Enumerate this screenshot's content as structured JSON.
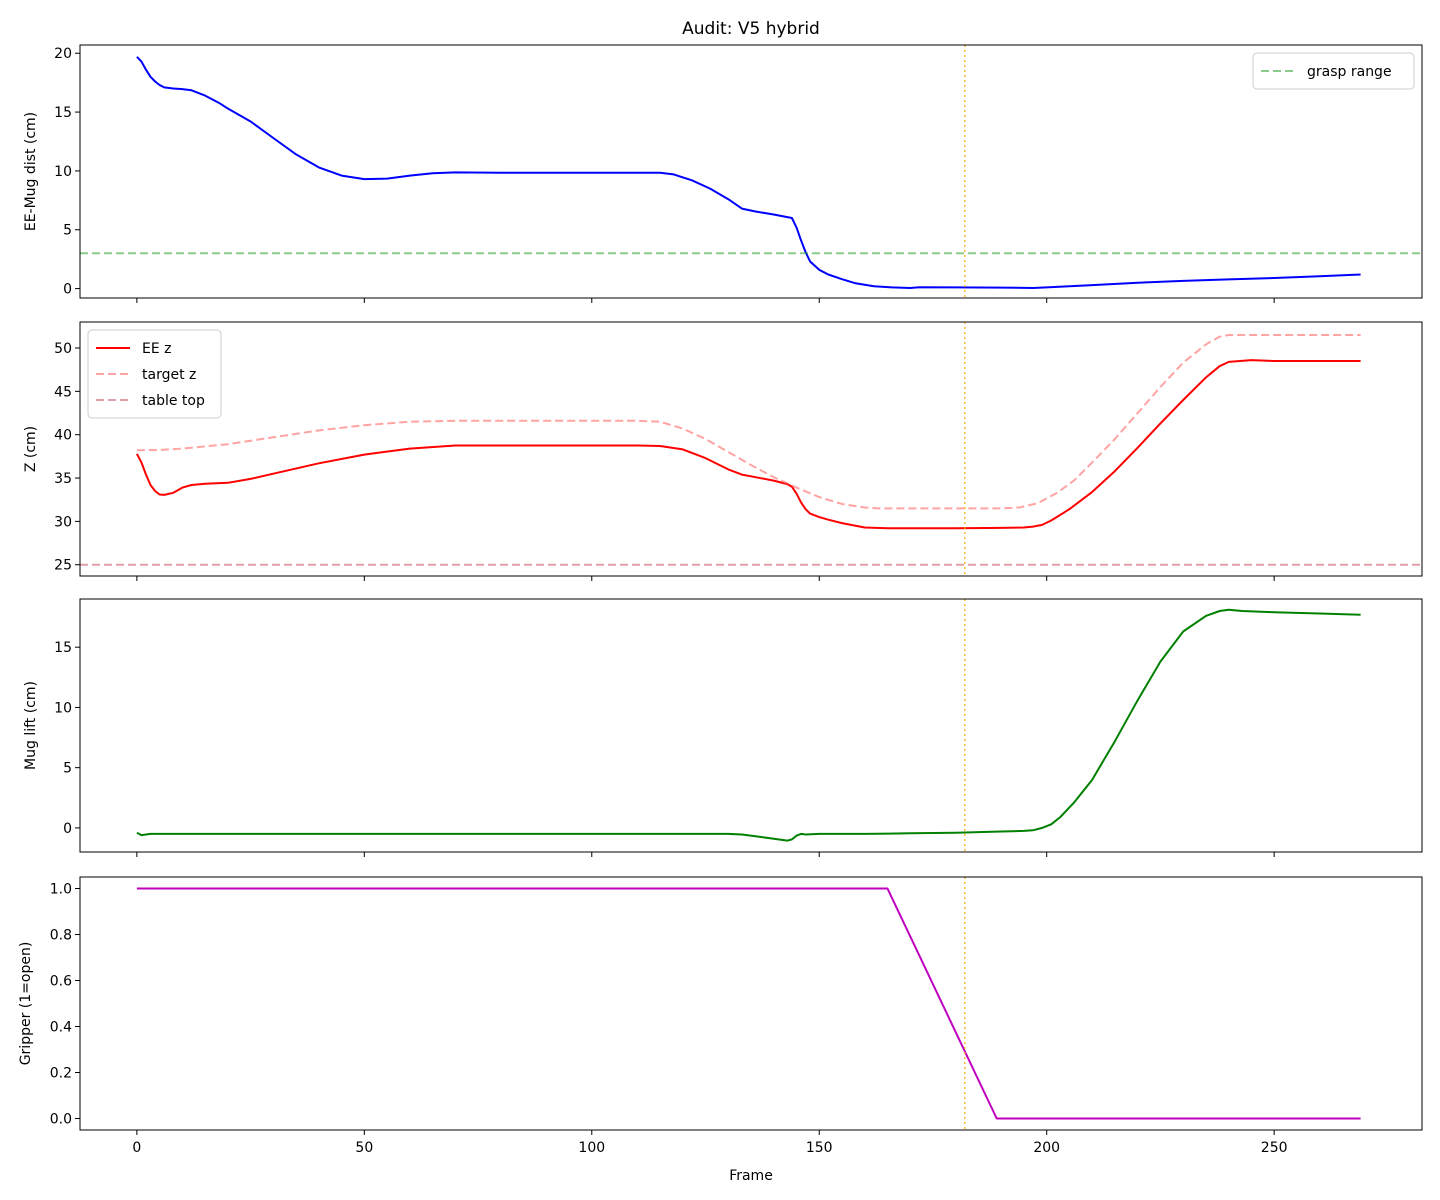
{
  "figure": {
    "title": "Audit: V5 hybrid",
    "xlabel": "Frame",
    "marker_frame": 182,
    "marker_color": "#ffa500"
  },
  "chart_data": [
    {
      "type": "line",
      "panel": 1,
      "title": "Audit: V5 hybrid",
      "xlabel": "",
      "ylabel": "EE-Mug dist (cm)",
      "xlim": [
        -12.5,
        282.5
      ],
      "ylim": [
        -0.8,
        20.7
      ],
      "xticks": [
        0,
        50,
        100,
        150,
        200,
        250
      ],
      "yticks": [
        0,
        5,
        10,
        15,
        20
      ],
      "grid": false,
      "legend_position": "upper right",
      "series": [
        {
          "name": "EE-Mug dist",
          "color": "#0000ff",
          "style": "solid",
          "x": [
            0,
            1,
            2,
            3,
            4,
            5,
            6,
            8,
            10,
            12,
            15,
            18,
            20,
            25,
            30,
            35,
            40,
            45,
            50,
            55,
            60,
            65,
            70,
            80,
            90,
            100,
            110,
            115,
            118,
            122,
            126,
            130,
            133,
            136,
            140,
            144,
            145,
            146,
            147,
            148,
            150,
            152,
            155,
            158,
            162,
            166,
            170,
            172,
            180,
            190,
            197,
            200,
            210,
            220,
            230,
            240,
            250,
            260,
            269
          ],
          "values": [
            19.7,
            19.3,
            18.6,
            18.0,
            17.6,
            17.3,
            17.1,
            17.0,
            16.95,
            16.85,
            16.4,
            15.8,
            15.3,
            14.2,
            12.8,
            11.4,
            10.3,
            9.6,
            9.3,
            9.35,
            9.6,
            9.8,
            9.87,
            9.85,
            9.85,
            9.85,
            9.85,
            9.85,
            9.7,
            9.2,
            8.5,
            7.6,
            6.8,
            6.55,
            6.3,
            6.0,
            5.2,
            4.1,
            3.1,
            2.3,
            1.6,
            1.2,
            0.8,
            0.45,
            0.2,
            0.1,
            0.05,
            0.12,
            0.1,
            0.08,
            0.05,
            0.1,
            0.3,
            0.5,
            0.65,
            0.78,
            0.9,
            1.05,
            1.2
          ]
        },
        {
          "name": "grasp range",
          "color": "#2ca02c",
          "style": "dashed",
          "alpha": 0.55,
          "y_const": 3.0
        }
      ]
    },
    {
      "type": "line",
      "panel": 2,
      "xlabel": "",
      "ylabel": "Z (cm)",
      "xlim": [
        -12.5,
        282.5
      ],
      "ylim": [
        23.7,
        53.0
      ],
      "xticks": [
        0,
        50,
        100,
        150,
        200,
        250
      ],
      "yticks": [
        25,
        30,
        35,
        40,
        45,
        50
      ],
      "grid": false,
      "legend_position": "upper left",
      "series": [
        {
          "name": "EE z",
          "color": "#ff0000",
          "style": "solid",
          "x": [
            0,
            1,
            2,
            3,
            4,
            5,
            6,
            8,
            10,
            12,
            15,
            20,
            25,
            30,
            40,
            50,
            60,
            70,
            80,
            90,
            100,
            110,
            115,
            120,
            125,
            130,
            133,
            136,
            140,
            143,
            144,
            145,
            146,
            147,
            148,
            150,
            152,
            155,
            160,
            165,
            170,
            180,
            190,
            195,
            197,
            199,
            201,
            205,
            210,
            215,
            220,
            225,
            230,
            235,
            238,
            240,
            245,
            250,
            260,
            269
          ],
          "values": [
            37.8,
            36.8,
            35.4,
            34.2,
            33.5,
            33.1,
            33.05,
            33.3,
            33.9,
            34.2,
            34.35,
            34.45,
            34.9,
            35.5,
            36.7,
            37.7,
            38.4,
            38.75,
            38.75,
            38.75,
            38.75,
            38.75,
            38.7,
            38.3,
            37.3,
            36.0,
            35.4,
            35.1,
            34.7,
            34.3,
            34.0,
            33.2,
            32.2,
            31.4,
            30.9,
            30.5,
            30.2,
            29.8,
            29.3,
            29.2,
            29.2,
            29.2,
            29.25,
            29.3,
            29.4,
            29.6,
            30.1,
            31.4,
            33.4,
            35.8,
            38.5,
            41.3,
            44.0,
            46.6,
            47.9,
            48.4,
            48.6,
            48.5,
            48.5,
            48.5
          ]
        },
        {
          "name": "target z",
          "color": "#ff6666",
          "style": "dashed",
          "alpha": 0.6,
          "x": [
            0,
            5,
            10,
            20,
            30,
            40,
            50,
            60,
            70,
            80,
            90,
            100,
            110,
            115,
            120,
            125,
            130,
            135,
            140,
            145,
            150,
            155,
            160,
            163,
            170,
            180,
            190,
            194,
            198,
            202,
            206,
            210,
            215,
            220,
            225,
            230,
            235,
            238,
            240,
            245,
            250,
            260,
            269
          ],
          "values": [
            38.2,
            38.25,
            38.4,
            38.9,
            39.7,
            40.5,
            41.1,
            41.5,
            41.6,
            41.6,
            41.6,
            41.6,
            41.6,
            41.5,
            40.7,
            39.5,
            38.0,
            36.5,
            35.1,
            33.9,
            32.8,
            32.0,
            31.6,
            31.5,
            31.5,
            31.5,
            31.5,
            31.6,
            32.1,
            33.2,
            34.7,
            36.8,
            39.5,
            42.5,
            45.5,
            48.3,
            50.4,
            51.3,
            51.5,
            51.5,
            51.5,
            51.5,
            51.5
          ]
        },
        {
          "name": "table top",
          "color": "#c0444f",
          "style": "dashed",
          "alpha": 0.5,
          "y_const": 25.0
        }
      ]
    },
    {
      "type": "line",
      "panel": 3,
      "xlabel": "",
      "ylabel": "Mug lift (cm)",
      "xlim": [
        -12.5,
        282.5
      ],
      "ylim": [
        -2.0,
        19.0
      ],
      "xticks": [
        0,
        50,
        100,
        150,
        200,
        250
      ],
      "yticks": [
        0,
        5,
        10,
        15
      ],
      "grid": false,
      "series": [
        {
          "name": "Mug lift",
          "color": "#008000",
          "style": "solid",
          "x": [
            0,
            1,
            2,
            3,
            5,
            10,
            50,
            100,
            130,
            133,
            136,
            140,
            143,
            144,
            145,
            146,
            147,
            150,
            160,
            170,
            180,
            190,
            195,
            197,
            199,
            201,
            203,
            206,
            210,
            215,
            220,
            225,
            230,
            235,
            238,
            240,
            243,
            250,
            260,
            269
          ],
          "values": [
            -0.4,
            -0.6,
            -0.55,
            -0.5,
            -0.5,
            -0.5,
            -0.5,
            -0.5,
            -0.5,
            -0.55,
            -0.7,
            -0.9,
            -1.05,
            -0.95,
            -0.65,
            -0.5,
            -0.55,
            -0.5,
            -0.5,
            -0.45,
            -0.4,
            -0.3,
            -0.25,
            -0.2,
            0.0,
            0.3,
            0.9,
            2.1,
            4.0,
            7.2,
            10.6,
            13.8,
            16.3,
            17.6,
            18.0,
            18.1,
            18.0,
            17.9,
            17.8,
            17.7
          ]
        }
      ]
    },
    {
      "type": "line",
      "panel": 4,
      "xlabel": "Frame",
      "ylabel": "Gripper (1=open)",
      "xlim": [
        -12.5,
        282.5
      ],
      "ylim": [
        -0.05,
        1.05
      ],
      "xticks": [
        0,
        50,
        100,
        150,
        200,
        250
      ],
      "yticks": [
        0.0,
        0.2,
        0.4,
        0.6,
        0.8,
        1.0
      ],
      "grid": false,
      "series": [
        {
          "name": "Gripper",
          "color": "#bf00bf",
          "style": "solid",
          "x": [
            0,
            165,
            189,
            269
          ],
          "values": [
            1.0,
            1.0,
            0.0,
            0.0
          ]
        }
      ]
    }
  ],
  "legends": {
    "panel1": [
      {
        "label": "grasp range",
        "color": "#2ca02c",
        "style": "dashed",
        "alpha": 0.55
      }
    ],
    "panel2": [
      {
        "label": "EE z",
        "color": "#ff0000",
        "style": "solid",
        "alpha": 1
      },
      {
        "label": "target z",
        "color": "#ff6666",
        "style": "dashed",
        "alpha": 0.6
      },
      {
        "label": "table top",
        "color": "#c0444f",
        "style": "dashed",
        "alpha": 0.5
      }
    ]
  }
}
